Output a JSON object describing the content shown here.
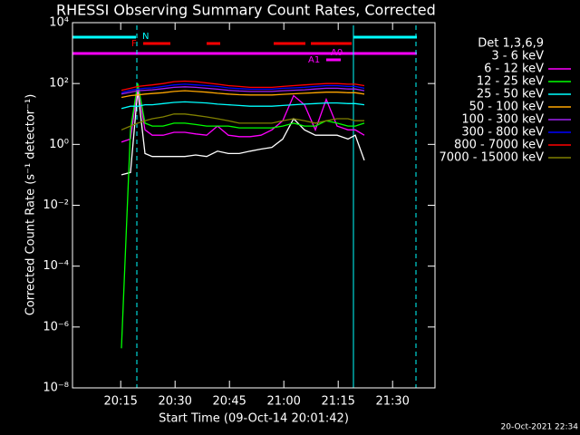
{
  "chart_data": {
    "type": "line",
    "title": "RHESSI Observing Summary Count Rates, Corrected",
    "x_label": "Start Time (09-Oct-14 20:01:42)",
    "y_label": "Corrected Count Rate (s⁻¹ detector⁻¹)",
    "legend_title": "Det 1,3,6,9",
    "footer": "20-Oct-2021 22:34",
    "log_y": true,
    "xlim": [
      0,
      100
    ],
    "xticks": [
      {
        "value": 13.3,
        "label": "20:15"
      },
      {
        "value": 28.3,
        "label": "20:30"
      },
      {
        "value": 43.3,
        "label": "20:45"
      },
      {
        "value": 58.3,
        "label": "21:00"
      },
      {
        "value": 73.3,
        "label": "21:15"
      },
      {
        "value": 88.3,
        "label": "21:30"
      }
    ],
    "ylim": [
      1e-08,
      10000
    ],
    "yticks": [
      {
        "value": 1e-08,
        "label": "10⁻⁸"
      },
      {
        "value": 1e-06,
        "label": "10⁻⁶"
      },
      {
        "value": 0.0001,
        "label": "10⁻⁴"
      },
      {
        "value": 0.01,
        "label": "10⁻²"
      },
      {
        "value": 1,
        "label": "10⁰"
      },
      {
        "value": 100,
        "label": "10²"
      },
      {
        "value": 10000,
        "label": "10⁴"
      }
    ],
    "flags": [
      "N",
      "F",
      "A1",
      "A0"
    ],
    "x": [
      13.5,
      16,
      18,
      20,
      22,
      25,
      28,
      31,
      34,
      37,
      40,
      43,
      46,
      49,
      52,
      55,
      58,
      61,
      64,
      67,
      70,
      73,
      76,
      78,
      80.5
    ],
    "series": [
      {
        "name": "3 - 6 keV",
        "color": "#000000",
        "values": [
          0.1,
          0.12,
          60,
          0.5,
          0.4,
          0.4,
          0.4,
          0.4,
          0.45,
          0.4,
          0.6,
          0.5,
          0.5,
          0.6,
          0.7,
          0.8,
          1.5,
          7,
          3,
          2,
          2,
          2,
          1.5,
          2,
          0.3
        ]
      },
      {
        "name": "6 - 12 keV",
        "color": "#ff00ff",
        "values": [
          1.2,
          1.5,
          80,
          3,
          2,
          2,
          2.5,
          2.5,
          2.2,
          2,
          4,
          2,
          1.8,
          1.8,
          2,
          3,
          6,
          40,
          20,
          3,
          30,
          4,
          3,
          3,
          2
        ]
      },
      {
        "name": "12 - 25 keV",
        "color": "#00ff00",
        "values": [
          2e-07,
          3,
          100,
          5,
          4,
          4,
          5,
          5,
          4.5,
          4,
          4,
          4,
          3.5,
          3.5,
          3.5,
          3.5,
          4,
          5,
          4,
          4,
          6,
          5,
          4,
          4,
          5
        ]
      },
      {
        "name": "25 - 50 keV",
        "color": "#00ffff",
        "values": [
          15,
          18,
          18,
          20,
          20,
          22,
          24,
          25,
          24,
          23,
          21,
          20,
          19,
          18,
          18,
          18,
          19,
          20,
          21,
          22,
          23,
          23,
          22,
          22,
          20
        ]
      },
      {
        "name": "50 - 100 keV",
        "color": "#ffa500",
        "values": [
          35,
          40,
          42,
          45,
          47,
          50,
          55,
          58,
          55,
          52,
          48,
          45,
          43,
          42,
          42,
          42,
          44,
          46,
          48,
          50,
          52,
          52,
          50,
          50,
          45
        ]
      },
      {
        "name": "100 - 300 keV",
        "color": "#a020f0",
        "values": [
          45,
          52,
          58,
          60,
          62,
          68,
          75,
          78,
          75,
          70,
          65,
          60,
          57,
          55,
          55,
          55,
          58,
          60,
          62,
          66,
          70,
          70,
          66,
          66,
          58
        ]
      },
      {
        "name": "300 - 800 keV",
        "color": "#0000ff",
        "values": [
          50,
          60,
          65,
          70,
          72,
          80,
          90,
          95,
          90,
          85,
          80,
          72,
          68,
          65,
          65,
          65,
          70,
          72,
          75,
          80,
          85,
          85,
          80,
          80,
          70
        ]
      },
      {
        "name": "800 - 7000 keV",
        "color": "#ff0000",
        "values": [
          60,
          70,
          80,
          85,
          90,
          100,
          115,
          120,
          115,
          105,
          95,
          85,
          80,
          75,
          75,
          75,
          80,
          85,
          90,
          95,
          100,
          100,
          95,
          95,
          85
        ]
      },
      {
        "name": "7000 - 15000 keV",
        "color": "#808000",
        "values": [
          3,
          4,
          5,
          6,
          7,
          8,
          10,
          10,
          9,
          8,
          7,
          6,
          5,
          5,
          5,
          5,
          6,
          7,
          6,
          5,
          6,
          7,
          7,
          6,
          6
        ]
      }
    ]
  }
}
